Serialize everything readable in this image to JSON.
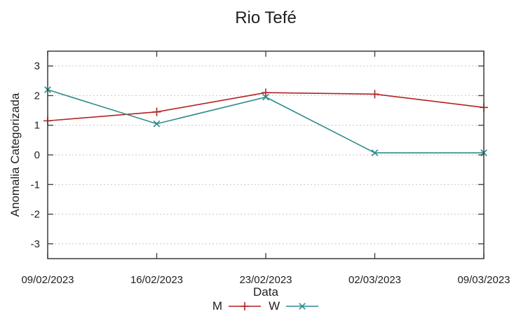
{
  "chart_data": {
    "type": "line",
    "title": "Rio Tefé",
    "xlabel": "Data",
    "ylabel": "Anomalia Categorizada",
    "categories": [
      "09/02/2023",
      "16/02/2023",
      "23/02/2023",
      "02/03/2023",
      "09/03/2023"
    ],
    "series": [
      {
        "name": "M",
        "color": "#b22222",
        "marker": "plus",
        "values": [
          1.15,
          1.45,
          2.1,
          2.05,
          1.6
        ]
      },
      {
        "name": "W",
        "color": "#2e8b8b",
        "marker": "cross",
        "values": [
          2.2,
          1.05,
          1.95,
          0.07,
          0.07
        ]
      }
    ],
    "ylim": [
      -3.5,
      3.5
    ],
    "yticks": [
      -3,
      -2,
      -1,
      0,
      1,
      2,
      3
    ],
    "grid": true,
    "legend_position": "bottom-center"
  },
  "colors": {
    "grid": "#c6c6c6",
    "border": "#3a3a3a",
    "text": "#1f1f1f"
  }
}
